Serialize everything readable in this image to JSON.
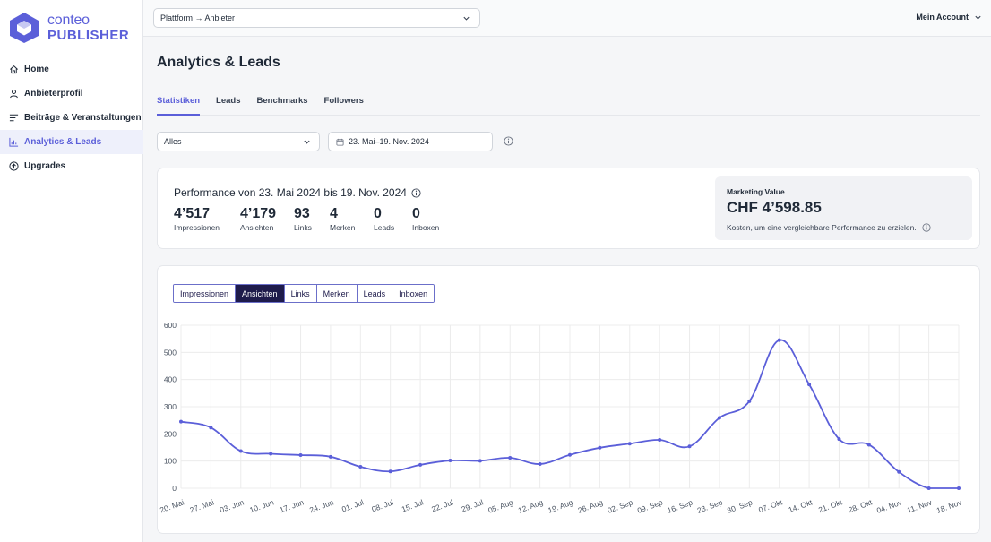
{
  "app": {
    "logo_top": "conteo",
    "logo_bottom": "PUBLISHER",
    "brand_color": "#5b5fd9"
  },
  "sidebar": {
    "items": [
      {
        "label": "Home",
        "icon": "home-icon"
      },
      {
        "label": "Anbieterprofil",
        "icon": "user-icon"
      },
      {
        "label": "Beiträge & Veranstaltungen",
        "icon": "list-icon"
      },
      {
        "label": "Analytics & Leads",
        "icon": "chart-icon",
        "active": true
      },
      {
        "label": "Upgrades",
        "icon": "arrow-up-circle-icon"
      }
    ]
  },
  "topbar": {
    "platform_value": "Plattform → Anbieter",
    "account_label": "Mein Account"
  },
  "page": {
    "title": "Analytics & Leads"
  },
  "tabs": [
    {
      "label": "Statistiken",
      "active": true
    },
    {
      "label": "Leads"
    },
    {
      "label": "Benchmarks"
    },
    {
      "label": "Followers"
    }
  ],
  "filters": {
    "scope_value": "Alles",
    "date_range": "23. Mai–19. Nov. 2024"
  },
  "performance": {
    "title": "Performance von 23. Mai 2024 bis 19. Nov. 2024",
    "metrics": [
      {
        "value": "4’517",
        "label": "Impressionen"
      },
      {
        "value": "4’179",
        "label": "Ansichten"
      },
      {
        "value": "93",
        "label": "Links"
      },
      {
        "value": "4",
        "label": "Merken"
      },
      {
        "value": "0",
        "label": "Leads"
      },
      {
        "value": "0",
        "label": "Inboxen"
      }
    ]
  },
  "marketing_value": {
    "title": "Marketing Value",
    "value": "CHF 4’598.85",
    "description": "Kosten, um eine vergleichbare Performance zu erzielen."
  },
  "chart_buttons": [
    {
      "label": "Impressionen"
    },
    {
      "label": "Ansichten",
      "active": true
    },
    {
      "label": "Links"
    },
    {
      "label": "Merken"
    },
    {
      "label": "Leads"
    },
    {
      "label": "Inboxen"
    }
  ],
  "chart_data": {
    "type": "line",
    "title": "",
    "xlabel": "",
    "ylabel": "",
    "ylim": [
      0,
      600
    ],
    "yticks": [
      "600",
      "500",
      "400",
      "300",
      "200",
      "100",
      "0"
    ],
    "grid": true,
    "line_color": "#5b5fd9",
    "categories": [
      "20. Mai",
      "27. Mai",
      "03. Jun",
      "10. Jun",
      "17. Jun",
      "24. Jun",
      "01. Jul",
      "08. Jul",
      "15. Jul",
      "22. Jul",
      "29. Jul",
      "05. Aug",
      "12. Aug",
      "19. Aug",
      "26. Aug",
      "02. Sep",
      "09. Sep",
      "16. Sep",
      "23. Sep",
      "30. Sep",
      "07. Okt",
      "14. Okt",
      "21. Okt",
      "28. Okt",
      "04. Nov",
      "11. Nov",
      "18. Nov"
    ],
    "series": [
      {
        "values": [
          245,
          223,
          137,
          127,
          122,
          116,
          79,
          62,
          86,
          102,
          101,
          112,
          89,
          123,
          149,
          164,
          178,
          154,
          259,
          320,
          545,
          382,
          181,
          160,
          60,
          0,
          0
        ]
      }
    ]
  }
}
